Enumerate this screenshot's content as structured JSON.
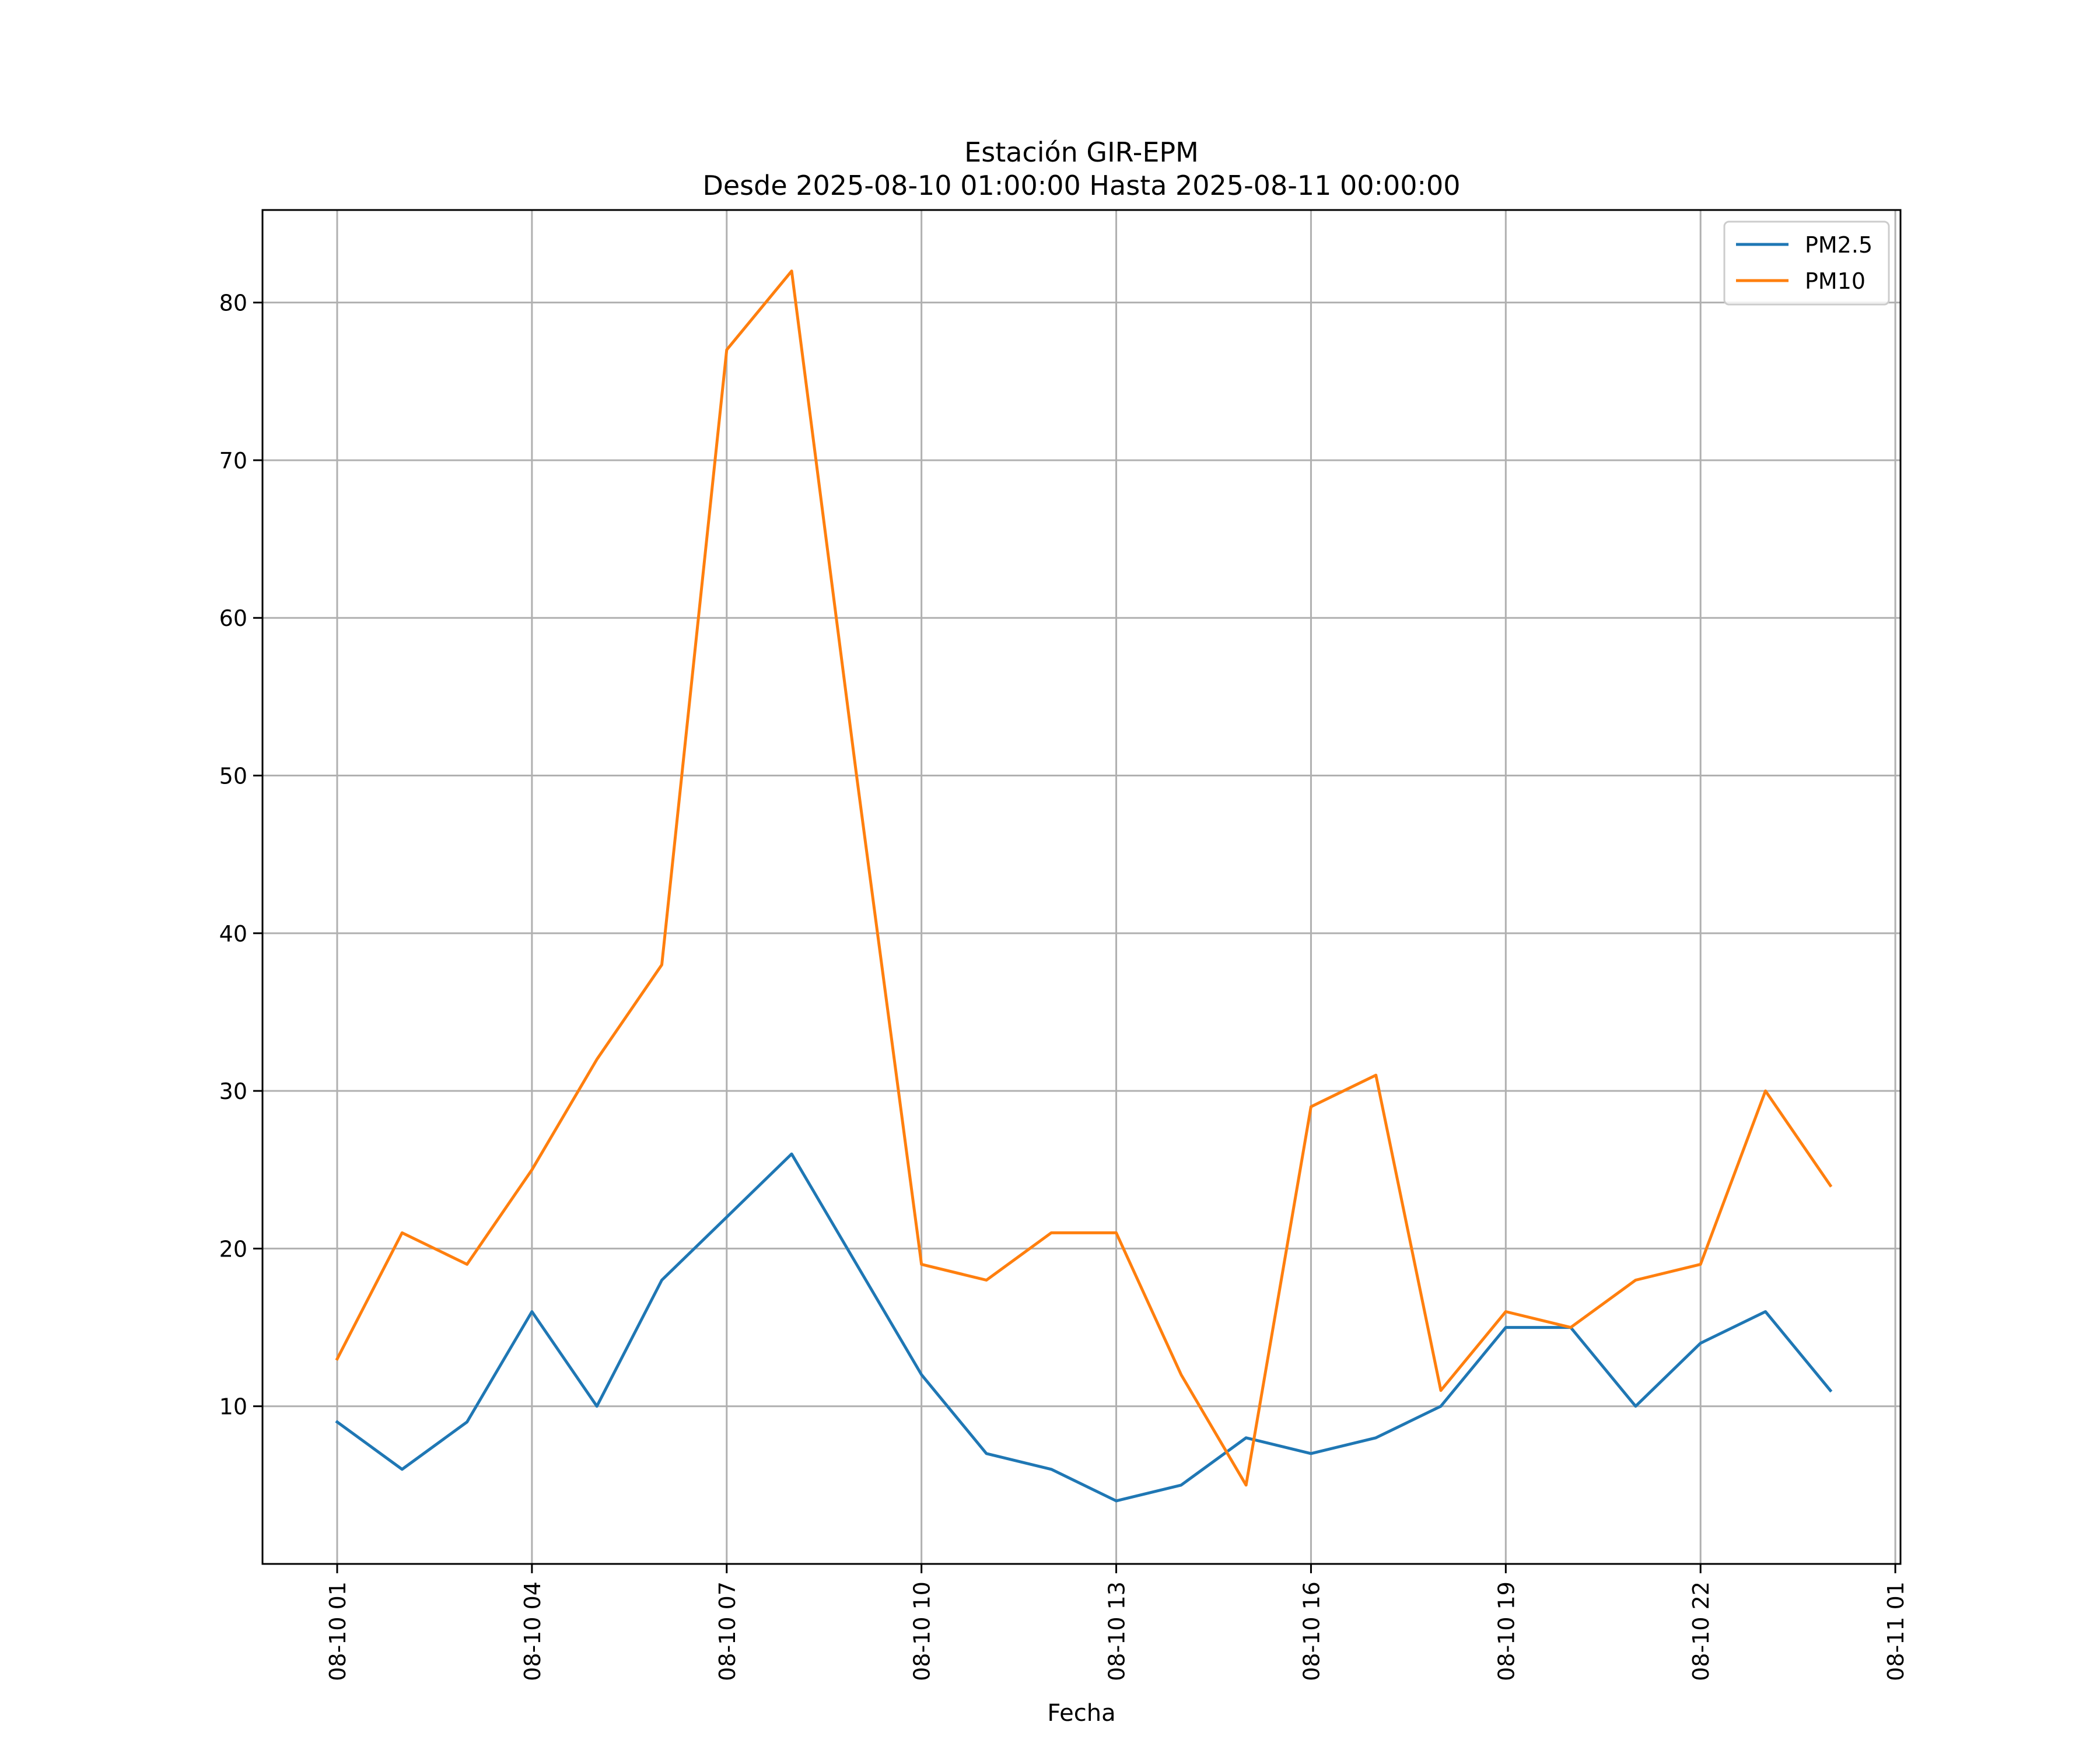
{
  "chart_data": {
    "type": "line",
    "title_line1": "Estación GIR-EPM",
    "title_line2": "Desde 2025-08-10 01:00:00 Hasta 2025-08-11 00:00:00",
    "xlabel": "Fecha",
    "ylabel": "",
    "x_hours": [
      1,
      2,
      3,
      4,
      5,
      6,
      7,
      8,
      9,
      10,
      11,
      12,
      13,
      14,
      15,
      16,
      17,
      18,
      19,
      20,
      21,
      22,
      23,
      24
    ],
    "series": [
      {
        "name": "PM2.5",
        "color": "#1f77b4",
        "values": [
          9,
          6,
          9,
          16,
          10,
          18,
          22,
          26,
          19,
          12,
          7,
          6,
          4,
          5,
          8,
          7,
          8,
          10,
          15,
          15,
          10,
          14,
          16,
          11
        ]
      },
      {
        "name": "PM10",
        "color": "#ff7f0e",
        "values": [
          13,
          21,
          19,
          25,
          32,
          38,
          77,
          82,
          50,
          19,
          18,
          21,
          21,
          12,
          5,
          29,
          31,
          11,
          16,
          15,
          18,
          19,
          30,
          24
        ]
      }
    ],
    "xlim_hours": [
      -0.15,
      25.08
    ],
    "ylim": [
      0,
      85.87
    ],
    "x_ticks": [
      {
        "hour": 1,
        "label": "08-10 01"
      },
      {
        "hour": 4,
        "label": "08-10 04"
      },
      {
        "hour": 7,
        "label": "08-10 07"
      },
      {
        "hour": 10,
        "label": "08-10 10"
      },
      {
        "hour": 13,
        "label": "08-10 13"
      },
      {
        "hour": 16,
        "label": "08-10 16"
      },
      {
        "hour": 19,
        "label": "08-10 19"
      },
      {
        "hour": 22,
        "label": "08-10 22"
      },
      {
        "hour": 25,
        "label": "08-11 01"
      }
    ],
    "y_ticks": [
      {
        "value": 10,
        "label": "10"
      },
      {
        "value": 20,
        "label": "20"
      },
      {
        "value": 30,
        "label": "30"
      },
      {
        "value": 40,
        "label": "40"
      },
      {
        "value": 50,
        "label": "50"
      },
      {
        "value": 60,
        "label": "60"
      },
      {
        "value": 70,
        "label": "70"
      },
      {
        "value": 80,
        "label": "80"
      }
    ],
    "grid": true,
    "legend_position": "top-right"
  }
}
